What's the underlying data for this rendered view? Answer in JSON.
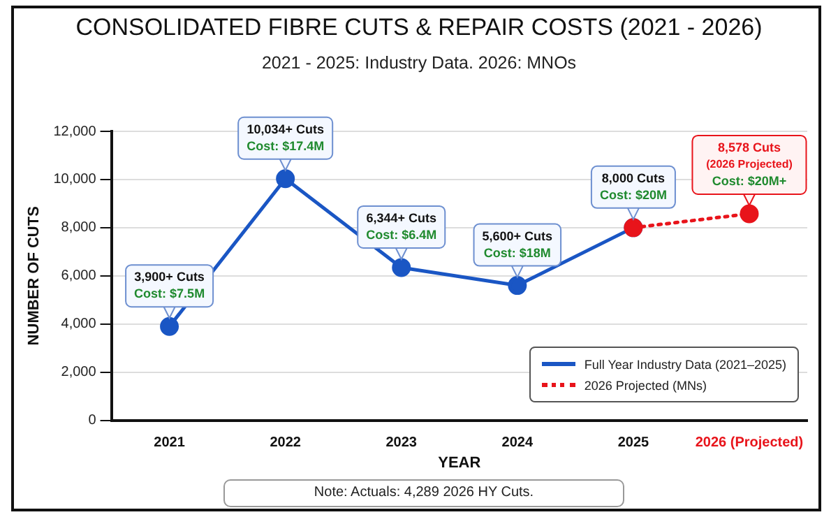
{
  "chart_data": {
    "type": "line",
    "title": "CONSOLIDATED FIBRE CUTS & REPAIR COSTS (2021 - 2026)",
    "subtitle": "2021 - 2025: Industry Data. 2026: MNOs",
    "xlabel": "YEAR",
    "ylabel": "NUMBER OF CUTS",
    "categories": [
      "2021",
      "2022",
      "2023",
      "2024",
      "2025",
      "2026 (Projected)"
    ],
    "series": [
      {
        "name": "Full Year Industry Data (2021–2025)",
        "color": "#1a56c4",
        "values": [
          3900,
          10034,
          6344,
          5600,
          8000,
          null
        ],
        "line_style": "solid",
        "marker": "circle",
        "value_labels": [
          "3,900+ Cuts\nCost: $7.5M",
          "10,034+ Cuts\nCost: $17.4M",
          "6,344+ Cuts\nCost: $6.4M",
          "5,600+ Cuts\nCost: $18M",
          "8,000 Cuts\nCost: $20M",
          null
        ]
      },
      {
        "name": "2026 Projected (MNs)",
        "color": "#e8141b",
        "values": [
          null,
          null,
          null,
          null,
          8000,
          8578
        ],
        "line_style": "dotted",
        "marker": "circle",
        "value_labels": [
          null,
          null,
          null,
          null,
          null,
          "8,578 Cuts\n(2026 Projected)\nCost: $20M+"
        ]
      }
    ],
    "ylim": [
      0,
      12000
    ],
    "yticks": [
      0,
      {
        "value": 2000,
        "label": "2,000"
      },
      {
        "value": 4000,
        "label": "4,000"
      },
      {
        "value": 6000,
        "label": "6,000"
      },
      {
        "value": 8000,
        "label": "8,000"
      },
      {
        "value": 10000,
        "label": "10,000"
      },
      {
        "value": 12000,
        "label": "12,000"
      }
    ],
    "grid": "y",
    "legend": "bottom right",
    "annotations": [
      "Note: Actuals: 4,289 2026 HY Cuts."
    ]
  }
}
